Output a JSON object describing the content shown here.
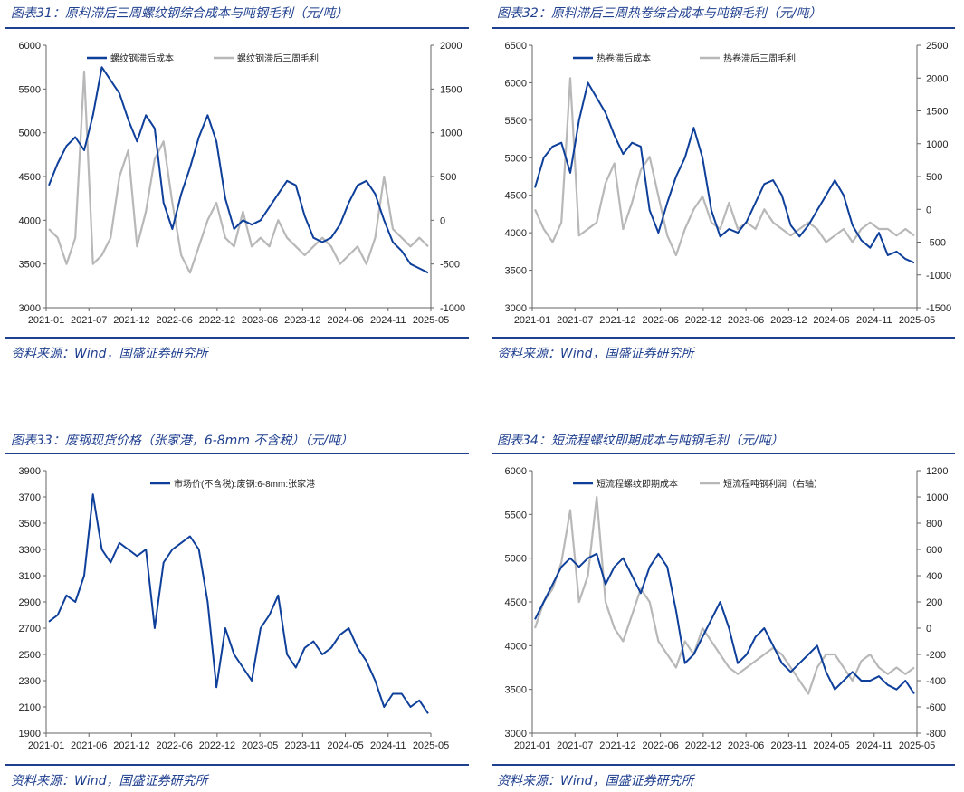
{
  "panels": [
    {
      "title": "图表31：原料滞后三周螺纹钢综合成本与吨钢毛利（元/吨）",
      "source": "资料来源：Wind，国盛证券研究所",
      "chart_data": {
        "type": "line",
        "x_ticks": [
          "2021-01",
          "2021-07",
          "2021-12",
          "2022-06",
          "2022-12",
          "2023-06",
          "2023-12",
          "2024-06",
          "2024-11",
          "2025-05"
        ],
        "y_left": {
          "min": 3000,
          "max": 6000,
          "ticks": [
            3000,
            3500,
            4000,
            4500,
            5000,
            5500,
            6000
          ]
        },
        "y_right": {
          "min": -1000,
          "max": 2000,
          "ticks": [
            -1000,
            -500,
            0,
            500,
            1000,
            1500,
            2000
          ]
        },
        "series": [
          {
            "name": "螺纹钢滞后成本",
            "axis": "left",
            "color": "#0e3f9a",
            "values": [
              4400,
              4650,
              4850,
              4950,
              4800,
              5200,
              5750,
              5600,
              5450,
              5150,
              4900,
              5200,
              5050,
              4200,
              3900,
              4300,
              4600,
              4950,
              5200,
              4900,
              4250,
              3900,
              4000,
              3950,
              4000,
              4150,
              4300,
              4450,
              4400,
              4050,
              3800,
              3750,
              3800,
              3950,
              4200,
              4400,
              4450,
              4300,
              4000,
              3750,
              3650,
              3500,
              3450,
              3400
            ]
          },
          {
            "name": "螺纹钢滞后三周毛利",
            "axis": "right",
            "color": "#b8b8b8",
            "values": [
              -100,
              -200,
              -500,
              -200,
              1700,
              -500,
              -400,
              -200,
              500,
              800,
              -300,
              100,
              700,
              900,
              200,
              -400,
              -600,
              -300,
              0,
              200,
              -200,
              -300,
              100,
              -300,
              -200,
              -300,
              0,
              -200,
              -300,
              -400,
              -300,
              -200,
              -300,
              -500,
              -400,
              -300,
              -500,
              -200,
              500,
              -100,
              -200,
              -300,
              -200,
              -300
            ]
          }
        ]
      }
    },
    {
      "title": "图表32：原料滞后三周热卷综合成本与吨钢毛利（元/吨）",
      "source": "资料来源：Wind，国盛证券研究所",
      "chart_data": {
        "type": "line",
        "x_ticks": [
          "2021-01",
          "2021-07",
          "2021-12",
          "2022-06",
          "2022-12",
          "2023-06",
          "2023-12",
          "2024-06",
          "2024-11",
          "2025-05"
        ],
        "y_left": {
          "min": 3000,
          "max": 6500,
          "ticks": [
            3000,
            3500,
            4000,
            4500,
            5000,
            5500,
            6000,
            6500
          ]
        },
        "y_right": {
          "min": -1500,
          "max": 2500,
          "ticks": [
            -1500,
            -1000,
            -500,
            0,
            500,
            1000,
            1500,
            2000,
            2500
          ]
        },
        "series": [
          {
            "name": "热卷滞后成本",
            "axis": "left",
            "color": "#0e3f9a",
            "values": [
              4600,
              5000,
              5150,
              5200,
              4800,
              5500,
              6000,
              5800,
              5600,
              5300,
              5050,
              5200,
              5150,
              4300,
              4000,
              4400,
              4750,
              5000,
              5400,
              5000,
              4300,
              3950,
              4050,
              4000,
              4150,
              4400,
              4650,
              4700,
              4500,
              4100,
              3950,
              4100,
              4300,
              4500,
              4700,
              4500,
              4100,
              3900,
              3800,
              4000,
              3700,
              3750,
              3650,
              3600
            ]
          },
          {
            "name": "热卷滞后三周毛利",
            "axis": "right",
            "color": "#b8b8b8",
            "values": [
              0,
              -300,
              -500,
              -200,
              2000,
              -400,
              -300,
              -200,
              400,
              700,
              -300,
              100,
              600,
              800,
              200,
              -400,
              -700,
              -300,
              0,
              200,
              -200,
              -300,
              100,
              -300,
              -200,
              -300,
              0,
              -200,
              -300,
              -400,
              -300,
              -200,
              -300,
              -500,
              -400,
              -300,
              -500,
              -300,
              -200,
              -300,
              -300,
              -400,
              -300,
              -400
            ]
          }
        ]
      }
    },
    {
      "title": "图表33：废钢现货价格（张家港，6-8mm 不含税）（元/吨）",
      "source": "资料来源：Wind，国盛证券研究所",
      "chart_data": {
        "type": "line",
        "x_ticks": [
          "2021-01",
          "2021-06",
          "2021-12",
          "2022-06",
          "2022-12",
          "2023-05",
          "2023-11",
          "2024-05",
          "2024-11",
          "2025-05"
        ],
        "y_left": {
          "min": 1900,
          "max": 3900,
          "ticks": [
            1900,
            2100,
            2300,
            2500,
            2700,
            2900,
            3100,
            3300,
            3500,
            3700,
            3900
          ]
        },
        "series": [
          {
            "name": "市场价(不含税):废钢:6-8mm:张家港",
            "axis": "left",
            "color": "#0e3f9a",
            "values": [
              2750,
              2800,
              2950,
              2900,
              3100,
              3720,
              3300,
              3200,
              3350,
              3300,
              3250,
              3300,
              2700,
              3200,
              3300,
              3350,
              3400,
              3300,
              2900,
              2250,
              2700,
              2500,
              2400,
              2300,
              2700,
              2800,
              2950,
              2500,
              2400,
              2550,
              2600,
              2500,
              2550,
              2650,
              2700,
              2550,
              2450,
              2300,
              2100,
              2200,
              2200,
              2100,
              2150,
              2050
            ]
          }
        ]
      }
    },
    {
      "title": "图表34：短流程螺纹即期成本与吨钢毛利（元/吨）",
      "source": "资料来源：Wind，国盛证券研究所",
      "chart_data": {
        "type": "line",
        "x_ticks": [
          "2021-01",
          "2021-07",
          "2021-12",
          "2022-06",
          "2022-12",
          "2023-06",
          "2023-11",
          "2024-05",
          "2024-11",
          "2025-05"
        ],
        "y_left": {
          "min": 3000,
          "max": 6000,
          "ticks": [
            3000,
            3500,
            4000,
            4500,
            5000,
            5500,
            6000
          ]
        },
        "y_right": {
          "min": -800,
          "max": 1200,
          "ticks": [
            -800,
            -600,
            -400,
            -200,
            0,
            200,
            400,
            600,
            800,
            1000,
            1200
          ]
        },
        "series": [
          {
            "name": "短流程螺纹即期成本",
            "axis": "left",
            "color": "#0e3f9a",
            "values": [
              4300,
              4500,
              4700,
              4900,
              5000,
              4900,
              5000,
              5050,
              4700,
              4900,
              5000,
              4800,
              4600,
              4900,
              5050,
              4900,
              4400,
              3800,
              3900,
              4100,
              4300,
              4500,
              4200,
              3800,
              3900,
              4100,
              4200,
              4000,
              3800,
              3700,
              3800,
              3900,
              4000,
              3700,
              3500,
              3600,
              3700,
              3600,
              3600,
              3650,
              3550,
              3500,
              3600,
              3450
            ]
          },
          {
            "name": "短流程吨钢利润（右轴）",
            "axis": "right",
            "color": "#b8b8b8",
            "values": [
              0,
              200,
              300,
              500,
              900,
              200,
              400,
              1000,
              200,
              0,
              -100,
              100,
              300,
              200,
              -100,
              -200,
              -300,
              -100,
              -200,
              0,
              -100,
              -200,
              -300,
              -350,
              -300,
              -250,
              -200,
              -150,
              -200,
              -300,
              -400,
              -500,
              -300,
              -200,
              -200,
              -300,
              -400,
              -250,
              -200,
              -300,
              -350,
              -300,
              -350,
              -300
            ]
          }
        ]
      }
    }
  ]
}
